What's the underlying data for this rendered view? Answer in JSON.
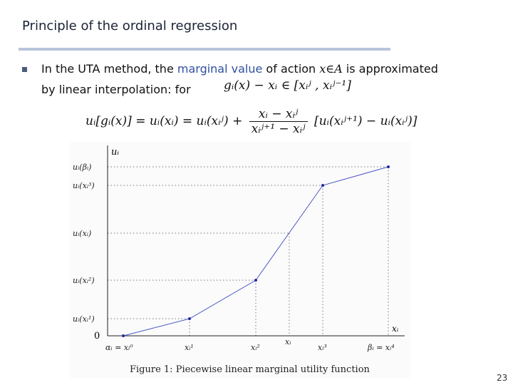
{
  "slide": {
    "title": "Principle of the ordinal regression",
    "line1_pre": "In the UTA method, the ",
    "line1_hl": "marginal value",
    "line1_post": " of action ",
    "line1_math": "x∈A",
    "line1_end": " is approximated",
    "line2": "by linear interpolation:   for",
    "formula1": "gᵢ(x) − xᵢ ∈ [xᵢʲ , xᵢʲ⁻¹]",
    "formula2_left": "uᵢ[gᵢ(x)] = uᵢ(xᵢ) = uᵢ(xᵢʲ) +",
    "formula2_num": "xᵢ − xᵢʲ",
    "formula2_den": "xᵢʲ⁺¹ − xᵢʲ",
    "formula2_right": "[uᵢ(xᵢʲ⁺¹) − uᵢ(xᵢʲ)]",
    "page_number": "23"
  },
  "figure": {
    "caption": "Figure 1: Piecewise linear marginal utility function",
    "y_axis_label": "uᵢ",
    "x_axis_label": "xᵢ",
    "origin_label": "0",
    "y_ticks": [
      "uᵢ(βᵢ)",
      "uᵢ(xᵢ³)",
      "uᵢ(xᵢ)",
      "uᵢ(xᵢ²)",
      "uᵢ(xᵢ¹)"
    ],
    "x_ticks": [
      "αᵢ = xᵢ⁰",
      "xᵢ¹",
      "xᵢ²",
      "xᵢ",
      "xᵢ³",
      "βᵢ = xᵢ⁴"
    ],
    "line_color": "#4b57c8"
  }
}
